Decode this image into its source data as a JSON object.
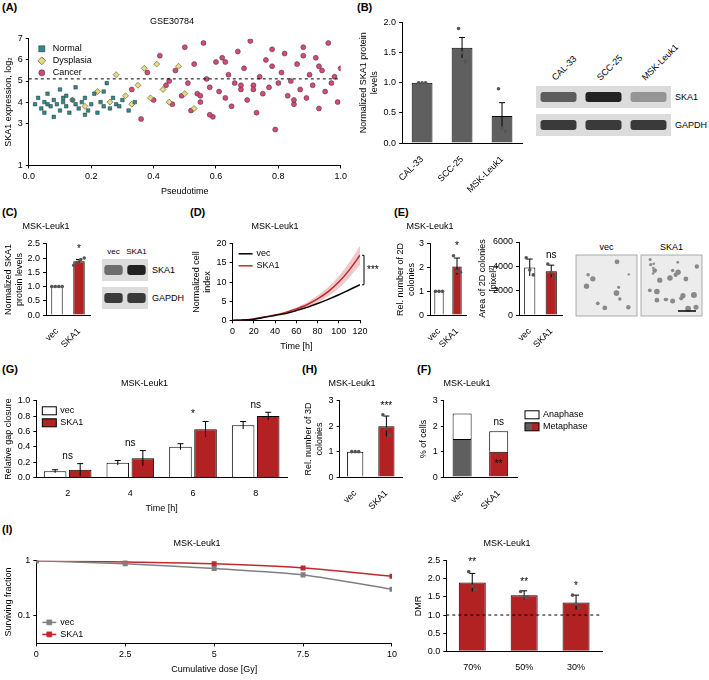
{
  "chart_data": [
    {
      "panel": "(A)",
      "type": "scatter",
      "title": "GSE30784",
      "x_label": "Pseudotime",
      "y_label": "SKA1 expression, log₂",
      "xlim": [
        0,
        1
      ],
      "xticks": [
        {
          "value": 0,
          "label": "0.0"
        },
        {
          "value": 0.2,
          "label": "0.2"
        },
        {
          "value": 0.4,
          "label": "0.4"
        },
        {
          "value": 0.6,
          "label": "0.6"
        },
        {
          "value": 0.8,
          "label": "0.8"
        },
        {
          "value": 1,
          "label": "1.0"
        }
      ],
      "ylim": [
        1,
        7
      ],
      "yticks": [
        1,
        3,
        4,
        5,
        6,
        7
      ],
      "reference_line": 5.1,
      "legend": "top-left",
      "series": [
        {
          "name": "Normal",
          "color": "#2a8c8c",
          "marker": "square",
          "x": [
            0.02,
            0.03,
            0.04,
            0.05,
            0.05,
            0.06,
            0.07,
            0.08,
            0.08,
            0.09,
            0.1,
            0.1,
            0.11,
            0.12,
            0.12,
            0.13,
            0.14,
            0.15,
            0.15,
            0.16,
            0.17,
            0.18,
            0.19,
            0.2,
            0.21,
            0.22,
            0.23,
            0.24,
            0.25,
            0.26,
            0.27,
            0.28,
            0.3,
            0.32,
            0.34,
            0.06,
            0.11,
            0.18,
            0.24,
            0.29
          ],
          "values": [
            3.9,
            4.2,
            3.7,
            4.0,
            3.5,
            4.4,
            3.8,
            4.1,
            3.3,
            3.9,
            4.6,
            3.6,
            4.0,
            4.3,
            3.8,
            3.5,
            4.1,
            3.9,
            4.7,
            3.7,
            4.0,
            4.2,
            3.6,
            3.9,
            4.4,
            3.5,
            4.0,
            3.8,
            4.9,
            3.7,
            4.2,
            3.9,
            4.1,
            3.6,
            4.0,
            3.9,
            4.2,
            3.4,
            4.5,
            3.8
          ]
        },
        {
          "name": "Dysplasia",
          "color": "#e8dc7a",
          "marker": "diamond",
          "x": [
            0.14,
            0.18,
            0.22,
            0.26,
            0.28,
            0.31,
            0.33,
            0.35,
            0.37,
            0.39,
            0.41,
            0.43,
            0.45,
            0.48,
            0.5,
            0.53
          ],
          "values": [
            4.1,
            3.8,
            4.5,
            4.0,
            5.3,
            4.3,
            3.9,
            4.8,
            5.6,
            4.2,
            5.8,
            4.6,
            4.0,
            5.7,
            4.4,
            3.7
          ]
        },
        {
          "name": "Cancer",
          "color": "#d6477a",
          "marker": "circle",
          "x": [
            0.33,
            0.36,
            0.38,
            0.4,
            0.42,
            0.44,
            0.46,
            0.47,
            0.49,
            0.5,
            0.51,
            0.52,
            0.53,
            0.54,
            0.55,
            0.56,
            0.57,
            0.58,
            0.59,
            0.6,
            0.61,
            0.62,
            0.63,
            0.64,
            0.65,
            0.66,
            0.67,
            0.68,
            0.69,
            0.7,
            0.71,
            0.72,
            0.73,
            0.74,
            0.75,
            0.76,
            0.77,
            0.78,
            0.79,
            0.8,
            0.81,
            0.82,
            0.83,
            0.84,
            0.85,
            0.86,
            0.87,
            0.88,
            0.89,
            0.9,
            0.91,
            0.92,
            0.93,
            0.94,
            0.95,
            0.96,
            0.97,
            0.98,
            0.99,
            1.0,
            0.45,
            0.55,
            0.63,
            0.72,
            0.78,
            0.85,
            0.93,
            0.58,
            0.68,
            0.88
          ],
          "values": [
            4.6,
            3.2,
            5.4,
            4.1,
            6.2,
            4.8,
            3.9,
            5.5,
            4.3,
            6.6,
            4.9,
            3.6,
            5.8,
            4.4,
            4.0,
            6.8,
            5.1,
            4.7,
            3.3,
            5.9,
            4.5,
            6.1,
            4.2,
            5.3,
            3.8,
            4.9,
            6.4,
            4.6,
            5.6,
            4.1,
            6.9,
            4.8,
            3.5,
            5.2,
            4.4,
            6.0,
            4.7,
            5.7,
            2.7,
            4.9,
            5.4,
            6.3,
            4.3,
            5.0,
            3.9,
            5.8,
            4.6,
            6.6,
            4.2,
            5.3,
            4.8,
            6.1,
            3.7,
            5.5,
            4.5,
            6.8,
            4.9,
            5.2,
            4.0,
            5.6,
            5.0,
            4.3,
            5.9,
            4.6,
            6.5,
            4.1,
            5.7,
            3.4,
            4.8,
            6.2
          ]
        }
      ]
    },
    {
      "panel": "(B)",
      "type": "bar",
      "categories": [
        "CAL-33",
        "SCC-25",
        "MSK-Leuk1"
      ],
      "values": [
        1.0,
        1.58,
        0.45
      ],
      "errors": [
        0,
        0.17,
        0.22
      ],
      "points": [
        [
          1,
          1,
          1
        ],
        [
          1.9,
          1.5,
          1.35
        ],
        [
          0.9,
          0.25,
          0.2
        ]
      ],
      "color": "#5f5f5f",
      "y_label": "Normalized SKA1 protein levels",
      "ylim": [
        0,
        2
      ],
      "yticks": [
        {
          "value": 0,
          "label": "0.0"
        },
        {
          "value": 0.5,
          "label": "0.5"
        },
        {
          "value": 1,
          "label": "1.0"
        },
        {
          "value": 1.5,
          "label": "1.5"
        },
        {
          "value": 2,
          "label": "2.0"
        }
      ],
      "blot": {
        "lanes": [
          "CAL-33",
          "SCC-25",
          "MSK-Leuk1"
        ],
        "rows": [
          "SKA1",
          "GAPDH"
        ]
      }
    },
    {
      "panel": "(C)",
      "type": "bar",
      "title": "MSK-Leuk1",
      "categories": [
        "vec",
        "SKA1"
      ],
      "values": [
        1.0,
        1.89
      ],
      "errors": [
        0,
        0.06
      ],
      "points": [
        [
          1,
          1,
          1,
          1
        ],
        [
          1.75,
          1.85,
          1.95,
          2.0
        ]
      ],
      "colors": [
        "#ffffff",
        "#b22222"
      ],
      "y_label": "Normalized SKA1 protein levels",
      "ylim": [
        0,
        2.5
      ],
      "yticks": [
        {
          "value": 0,
          "label": "0.0"
        },
        {
          "value": 0.5,
          "label": "0.5"
        },
        {
          "value": 1,
          "label": "1.0"
        },
        {
          "value": 1.5,
          "label": "1.5"
        },
        {
          "value": 2,
          "label": "2.0"
        },
        {
          "value": 2.5,
          "label": "2.5"
        }
      ],
      "significance": [
        null,
        "*"
      ],
      "blot": {
        "lanes": [
          "vec",
          "SKA1"
        ],
        "rows": [
          "SKA1",
          "GAPDH"
        ]
      }
    },
    {
      "panel": "(D)",
      "type": "line",
      "title": "MSK-Leuk1",
      "x": [
        0,
        10,
        20,
        30,
        40,
        50,
        60,
        70,
        80,
        90,
        100,
        110,
        120
      ],
      "x_label": "Time [h]",
      "y_label": "Normalized cell index",
      "xlim": [
        0,
        120
      ],
      "xticks": [
        0,
        20,
        40,
        60,
        80,
        100,
        120
      ],
      "ylim": [
        0,
        20
      ],
      "yticks": [
        0,
        5,
        10,
        15,
        20
      ],
      "legend": "top-left",
      "significance": "***",
      "series": [
        {
          "name": "vec",
          "color": "#000000",
          "values": [
            0,
            0.1,
            0.3,
            0.8,
            1.3,
            1.8,
            2.6,
            3.4,
            4.4,
            5.5,
            6.7,
            8.0,
            9.3
          ]
        },
        {
          "name": "SKA1",
          "color": "#c0282d",
          "values": [
            0,
            0.1,
            0.4,
            0.9,
            1.4,
            2.1,
            3.0,
            4.1,
            5.6,
            7.5,
            10.0,
            13.2,
            17.0
          ],
          "errors": [
            0,
            0,
            0.05,
            0.1,
            0.15,
            0.25,
            0.4,
            0.6,
            0.9,
            1.2,
            1.6,
            2.0,
            2.5
          ]
        }
      ]
    },
    {
      "panel": "(E)",
      "type": "bar",
      "title": "MSK-Leuk1",
      "categories": [
        "vec",
        "SKA1"
      ],
      "values": [
        1.0,
        2.05
      ],
      "errors": [
        0,
        0.35
      ],
      "points": [
        [
          1,
          1,
          1
        ],
        [
          2.5,
          1.85,
          1.8
        ]
      ],
      "colors": [
        "#ffffff",
        "#b22222"
      ],
      "y_label": "Rel. number of 2D colonies",
      "ylim": [
        0,
        3
      ],
      "yticks": [
        0,
        1,
        2,
        3
      ],
      "significance": [
        null,
        "*"
      ],
      "image": {
        "labels": [
          "vec",
          "SKA1"
        ]
      }
    },
    {
      "type": "bar",
      "categories": [
        "vec",
        "SKA1"
      ],
      "values": [
        3900,
        3600
      ],
      "errors": [
        700,
        500
      ],
      "points": [
        [
          4700,
          3700,
          3300
        ],
        [
          4200,
          3500,
          3100
        ]
      ],
      "colors": [
        "#ffffff",
        "#b22222"
      ],
      "y_label": "Area of 2D colonies [pixel²]",
      "ylim": [
        0,
        6000
      ],
      "yticks": [
        0,
        2000,
        4000,
        6000
      ],
      "significance": [
        null,
        "ns"
      ]
    },
    {
      "panel": "(F)",
      "type": "bar",
      "title": "MSK-Leuk1",
      "categories": [
        "vec",
        "SKA1"
      ],
      "stacked": true,
      "legend": "right",
      "series": [
        {
          "name": "Metaphase",
          "colors": [
            "#5f5f5f",
            "#b22222"
          ],
          "values": [
            1.5,
            1.0
          ]
        },
        {
          "name": "Anaphase",
          "color": "#ffffff",
          "values": [
            1.0,
            0.8
          ]
        }
      ],
      "y_label": "% of cells",
      "ylim": [
        0,
        3
      ],
      "yticks": [
        0,
        1,
        2,
        3
      ],
      "annotations": [
        {
          "category": "SKA1",
          "y": 2.15,
          "text": "ns"
        },
        {
          "category": "SKA1",
          "y": 0.5,
          "text": "**"
        }
      ]
    },
    {
      "panel": "(G)",
      "type": "bar",
      "title": "MSK-Leuk1",
      "categories": [
        2,
        4,
        6,
        8
      ],
      "x_label": "Time [h]",
      "y_label": "Relative gap closure",
      "ylim": [
        0,
        1
      ],
      "yticks": [
        {
          "value": 0,
          "label": "0.0"
        },
        {
          "value": 0.2,
          "label": "0.2"
        },
        {
          "value": 0.4,
          "label": "0.4"
        },
        {
          "value": 0.6,
          "label": "0.6"
        },
        {
          "value": 0.8,
          "label": "0.8"
        },
        {
          "value": 1,
          "label": "1.0"
        }
      ],
      "legend": "top-left",
      "significance": [
        "ns",
        "ns",
        "*",
        "ns"
      ],
      "series": [
        {
          "name": "vec",
          "color": "#ffffff",
          "values": [
            0.08,
            0.19,
            0.4,
            0.68
          ],
          "errors": [
            0.02,
            0.03,
            0.04,
            0.05
          ]
        },
        {
          "name": "SKA1",
          "color": "#b22222",
          "values": [
            0.1,
            0.25,
            0.63,
            0.8
          ],
          "errors": [
            0.08,
            0.1,
            0.1,
            0.05
          ]
        }
      ]
    },
    {
      "panel": "(H)",
      "type": "bar",
      "title": "MSK-Leuk1",
      "categories": [
        "vec",
        "SKA1"
      ],
      "values": [
        1.0,
        2.0
      ],
      "errors": [
        0,
        0.4
      ],
      "points": [
        [
          1,
          1,
          1
        ],
        [
          2.45,
          1.9,
          1.65
        ]
      ],
      "colors": [
        "#ffffff",
        "#b22222"
      ],
      "y_label": "Rel. number of 3D colonies",
      "ylim": [
        0,
        3
      ],
      "yticks": [
        0,
        1,
        2,
        3
      ],
      "significance": [
        null,
        "***"
      ]
    },
    {
      "panel": "(I)",
      "type": "line",
      "title": "MSK-Leuk1",
      "log": "y",
      "x": [
        0,
        2.5,
        5,
        7.5,
        10
      ],
      "x_label": "Cumulative dose [Gy]",
      "y_label": "Surviving fraction",
      "xlim": [
        0,
        10
      ],
      "xticks": [
        0,
        2.5,
        5,
        7.5,
        10
      ],
      "ylim": [
        0.03,
        1
      ],
      "yticks": [
        0.1,
        1
      ],
      "legend": "bottom-left",
      "series": [
        {
          "name": "vec",
          "color": "#808080",
          "marker": "square",
          "values": [
            1,
            0.88,
            0.72,
            0.55,
            0.3
          ]
        },
        {
          "name": "SKA1",
          "color": "#c0282d",
          "marker": "square",
          "values": [
            1,
            0.95,
            0.88,
            0.74,
            0.52
          ]
        }
      ]
    },
    {
      "type": "bar",
      "title": "MSK-Leuk1",
      "categories": [
        "70%",
        "50%",
        "30%"
      ],
      "values": [
        1.9,
        1.55,
        1.35
      ],
      "errors": [
        0.25,
        0.12,
        0.2
      ],
      "points": [
        [
          2.2,
          1.8,
          1.7
        ],
        [
          1.65,
          1.5,
          1.5
        ],
        [
          1.55,
          1.3,
          1.2
        ]
      ],
      "color": "#b22222",
      "y_label": "DMR",
      "ylim": [
        0,
        2.5
      ],
      "yticks": [
        {
          "value": 0,
          "label": "0.0"
        },
        {
          "value": 0.5,
          "label": "0.5"
        },
        {
          "value": 1,
          "label": "1.0"
        },
        {
          "value": 1.5,
          "label": "1.5"
        },
        {
          "value": 2,
          "label": "2.0"
        },
        {
          "value": 2.5,
          "label": "2.5"
        }
      ],
      "reference_line": 1,
      "significance": [
        "**",
        "**",
        "*"
      ]
    }
  ]
}
